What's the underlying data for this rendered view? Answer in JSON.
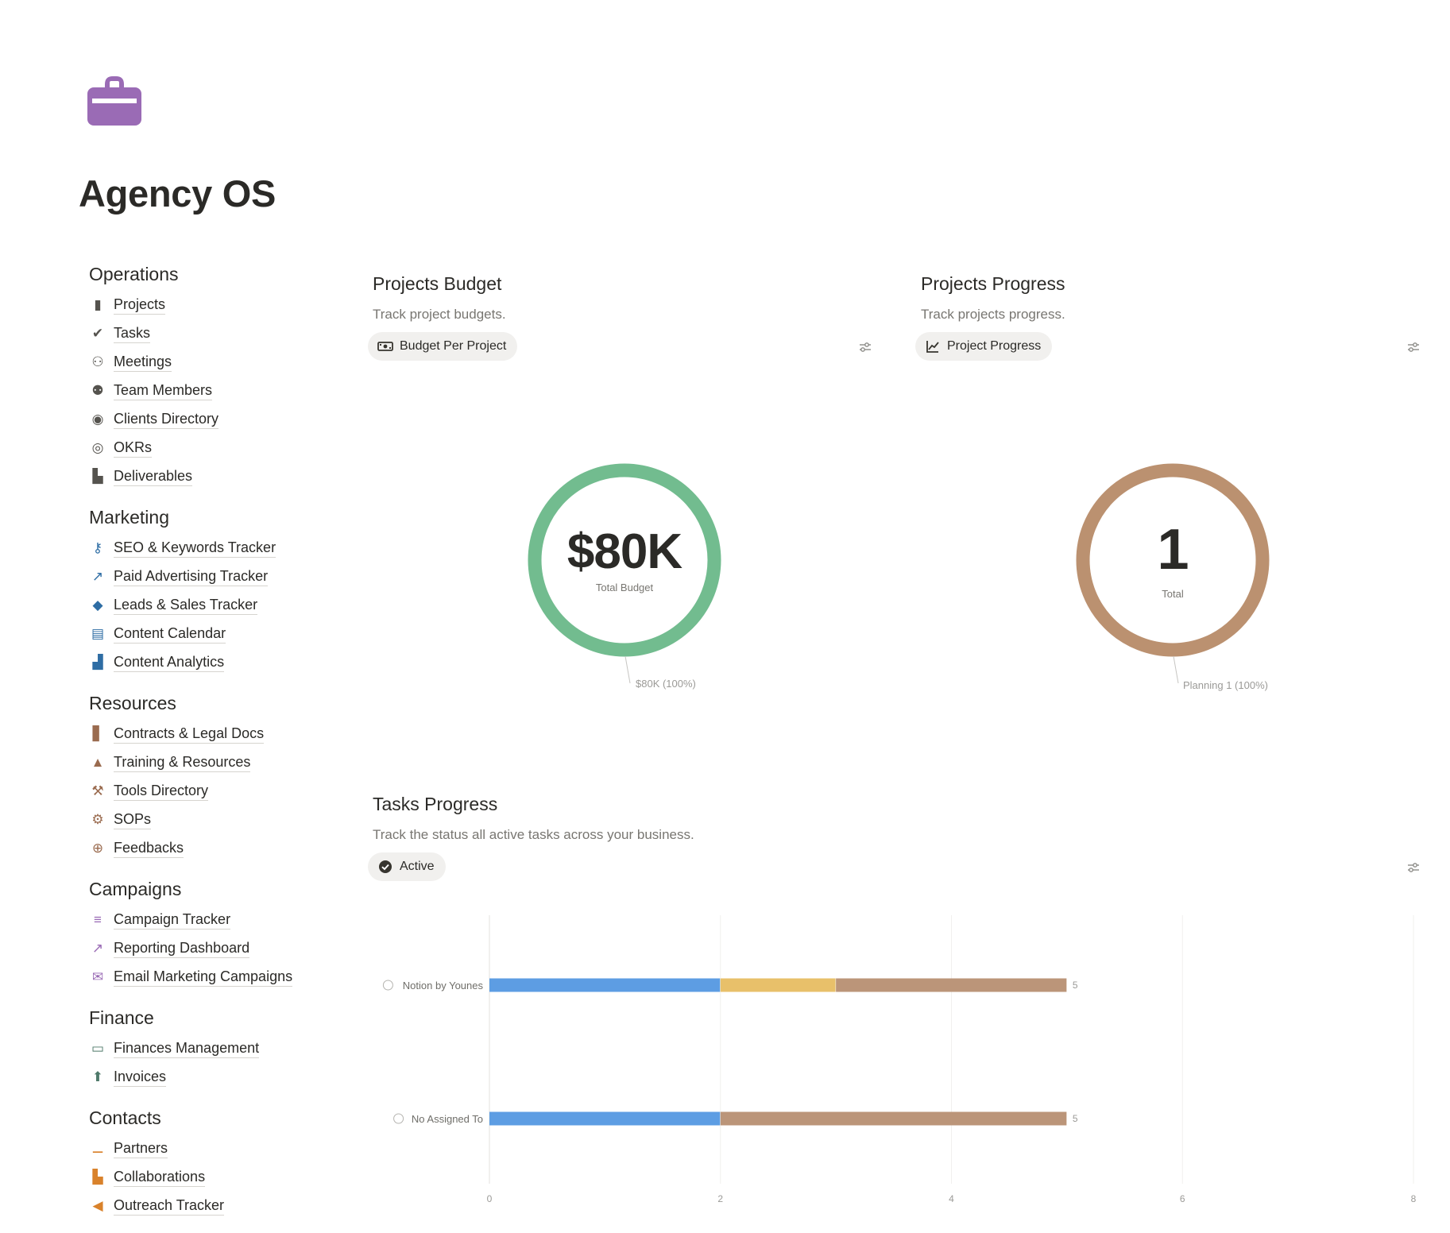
{
  "page": {
    "title": "Agency OS",
    "icon": "briefcase-icon",
    "icon_color": "#9a6bb5"
  },
  "sidebar": {
    "sections": [
      {
        "title": "Operations",
        "items": [
          {
            "label": "Projects",
            "icon": "briefcase-icon"
          },
          {
            "label": "Tasks",
            "icon": "check-circle-icon"
          },
          {
            "label": "Meetings",
            "icon": "meeting-icon"
          },
          {
            "label": "Team Members",
            "icon": "people-icon"
          },
          {
            "label": "Clients Directory",
            "icon": "user-circle-icon"
          },
          {
            "label": "OKRs",
            "icon": "target-icon"
          },
          {
            "label": "Deliverables",
            "icon": "note-icon"
          }
        ]
      },
      {
        "title": "Marketing",
        "items": [
          {
            "label": "SEO & Keywords Tracker",
            "icon": "key-icon"
          },
          {
            "label": "Paid Advertising Tracker",
            "icon": "arrow-up-right-icon"
          },
          {
            "label": "Leads & Sales Tracker",
            "icon": "tag-icon"
          },
          {
            "label": "Content Calendar",
            "icon": "calendar-icon"
          },
          {
            "label": "Content Analytics",
            "icon": "analytics-icon"
          }
        ]
      },
      {
        "title": "Resources",
        "items": [
          {
            "label": "Contracts & Legal Docs",
            "icon": "document-icon"
          },
          {
            "label": "Training & Resources",
            "icon": "graduation-cap-icon"
          },
          {
            "label": "Tools Directory",
            "icon": "wrench-icon"
          },
          {
            "label": "SOPs",
            "icon": "gear-icon"
          },
          {
            "label": "Feedbacks",
            "icon": "plus-circle-icon"
          }
        ]
      },
      {
        "title": "Campaigns",
        "items": [
          {
            "label": "Campaign Tracker",
            "icon": "timeline-icon"
          },
          {
            "label": "Reporting Dashboard",
            "icon": "line-chart-icon"
          },
          {
            "label": "Email Marketing Campaigns",
            "icon": "mail-open-icon"
          }
        ]
      },
      {
        "title": "Finance",
        "items": [
          {
            "label": "Finances Management",
            "icon": "money-icon"
          },
          {
            "label": "Invoices",
            "icon": "arrow-up-circle-icon"
          }
        ]
      },
      {
        "title": "Contacts",
        "items": [
          {
            "label": "Partners",
            "icon": "partners-icon"
          },
          {
            "label": "Collaborations",
            "icon": "collaboration-icon"
          },
          {
            "label": "Outreach Tracker",
            "icon": "megaphone-icon"
          }
        ]
      }
    ]
  },
  "widgets": {
    "budget": {
      "title": "Projects Budget",
      "description": "Track project budgets.",
      "chip": "Budget Per Project",
      "value": "$80K",
      "caption": "Total Budget",
      "legend": "$80K (100%)",
      "color": "#72bc8f"
    },
    "progress": {
      "title": "Projects Progress",
      "description": "Track projects progress.",
      "chip": "Project Progress",
      "value": "1",
      "caption": "Total",
      "legend": "Planning 1 (100%)",
      "color": "#bb9170"
    },
    "tasks": {
      "title": "Tasks Progress",
      "description": "Track the status all active tasks across your business.",
      "chip": "Active"
    }
  },
  "chart_data": {
    "type": "bar",
    "orientation": "horizontal",
    "stacked": true,
    "categories": [
      "Notion by Younes",
      "No Assigned To"
    ],
    "series": [
      {
        "values": [
          2,
          2
        ],
        "color": "#5d9de3"
      },
      {
        "values": [
          1,
          0
        ],
        "color": "#e8c06a"
      },
      {
        "values": [
          2,
          3
        ],
        "color": "#bb9579"
      }
    ],
    "totals": [
      5,
      5
    ],
    "xlim": [
      0,
      8
    ],
    "xticks": [
      0,
      2,
      4,
      6,
      8
    ],
    "grid": true
  }
}
